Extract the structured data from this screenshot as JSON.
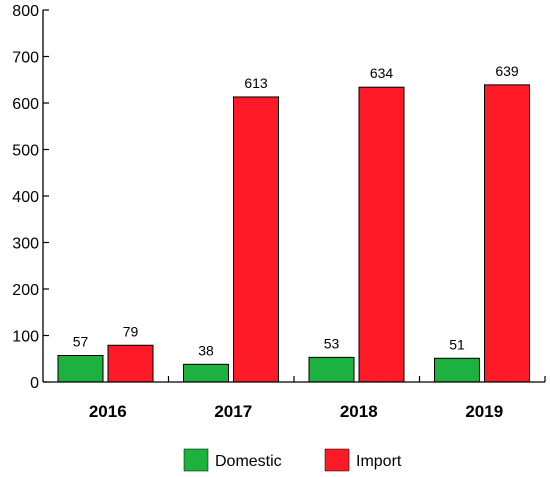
{
  "chart_data": {
    "type": "bar",
    "title": "",
    "xlabel": "",
    "ylabel": "",
    "categories": [
      "2016",
      "2017",
      "2018",
      "2019"
    ],
    "series": [
      {
        "name": "Domestic",
        "color": "#1db13f",
        "values": [
          57,
          38,
          53,
          51
        ]
      },
      {
        "name": "Import",
        "color": "#ff1a27",
        "values": [
          79,
          613,
          634,
          639
        ]
      }
    ],
    "ylim": [
      0,
      800
    ],
    "yticks": [
      0,
      100,
      200,
      300,
      400,
      500,
      600,
      700,
      800
    ],
    "ytick_labels": [
      "0",
      "100",
      "200",
      "300",
      "400",
      "500",
      "600",
      "700",
      "800"
    ],
    "grid": false,
    "legend_position": "bottom-center",
    "show_data_labels": true
  }
}
